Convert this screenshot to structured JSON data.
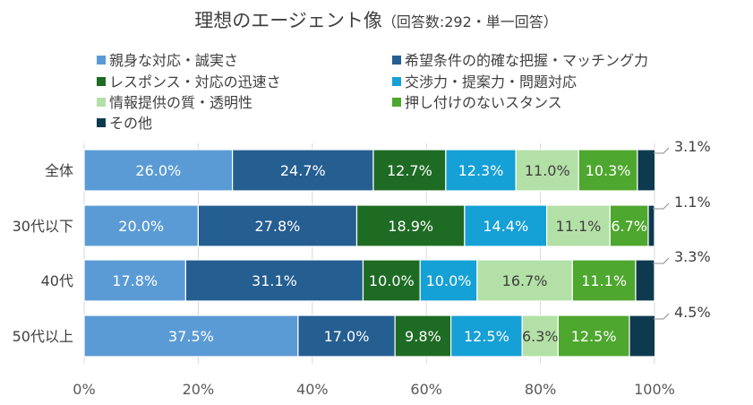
{
  "chart_data": {
    "type": "bar",
    "orientation": "horizontal",
    "stacked": true,
    "title": "理想のエージェント像",
    "subtitle": "（回答数:292・単一回答）",
    "categories": [
      "全体",
      "30代以下",
      "40代",
      "50代以上"
    ],
    "series": [
      {
        "name": "親身な対応・誠実さ",
        "color": "#5b9bd5",
        "values": [
          26.0,
          20.0,
          17.8,
          37.5
        ]
      },
      {
        "name": "希望条件の的確な把握・マッチング力",
        "color": "#255e91",
        "values": [
          24.7,
          27.8,
          31.1,
          17.0
        ]
      },
      {
        "name": "レスポンス・対応の迅速さ",
        "color": "#1e6b24",
        "values": [
          12.7,
          18.9,
          10.0,
          9.8
        ]
      },
      {
        "name": "交渉力・提案力・問題対応",
        "color": "#15a0d6",
        "values": [
          12.3,
          14.4,
          10.0,
          12.5
        ]
      },
      {
        "name": "情報提供の質・透明性",
        "color": "#b3e0a6",
        "values": [
          11.0,
          11.1,
          16.7,
          6.3
        ]
      },
      {
        "name": "押し付けのないスタンス",
        "color": "#4ea72e",
        "values": [
          10.3,
          6.7,
          11.1,
          12.5
        ]
      },
      {
        "name": "その他",
        "color": "#0e3a4f",
        "values": [
          3.1,
          1.1,
          3.3,
          4.5
        ]
      }
    ],
    "labels": [
      [
        "26.0%",
        "24.7%",
        "12.7%",
        "12.3%",
        "11.0%",
        "10.3%",
        "3.1%"
      ],
      [
        "20.0%",
        "27.8%",
        "18.9%",
        "14.4%",
        "11.1%",
        "6.7%",
        "1.1%"
      ],
      [
        "17.8%",
        "31.1%",
        "10.0%",
        "10.0%",
        "16.7%",
        "11.1%",
        "3.3%"
      ],
      [
        "37.5%",
        "17.0%",
        "9.8%",
        "12.5%",
        "6.3%",
        "12.5%",
        "4.5%"
      ]
    ],
    "xlim": [
      0,
      100
    ],
    "xticks": [
      "0%",
      "20%",
      "40%",
      "60%",
      "80%",
      "100%"
    ],
    "grid": true,
    "legend_position": "top"
  }
}
